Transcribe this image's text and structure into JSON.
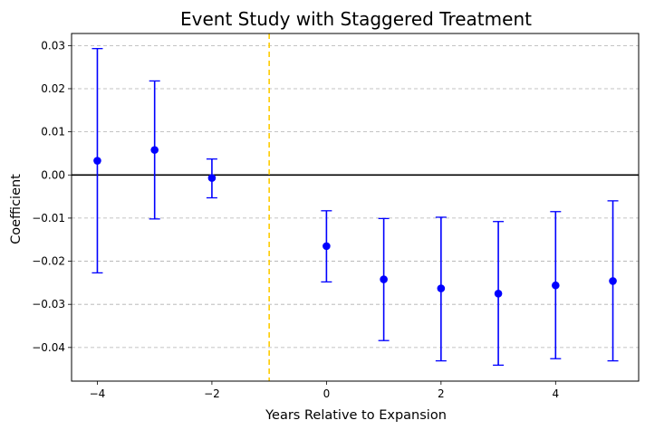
{
  "chart_data": {
    "type": "scatter",
    "title": "Event Study with Staggered Treatment",
    "xlabel": "Years Relative to Expansion",
    "ylabel": "Coefficient",
    "xlim": [
      -4.45,
      5.45
    ],
    "ylim": [
      -0.0478,
      0.0328
    ],
    "xticks": [
      -4,
      -2,
      0,
      2,
      4
    ],
    "xtick_labels": [
      "−4",
      "−2",
      "0",
      "2",
      "4"
    ],
    "yticks": [
      0.03,
      0.02,
      0.01,
      0.0,
      -0.01,
      -0.02,
      -0.03,
      -0.04
    ],
    "ytick_labels": [
      "0.03",
      "0.02",
      "0.01",
      "0.00",
      "−0.01",
      "−0.02",
      "−0.03",
      "−0.04"
    ],
    "grid": "y-dashed",
    "reference_lines": {
      "horizontal_y": 0,
      "horizontal_color": "#000000",
      "vertical_x": -1,
      "vertical_color": "#ffcc00"
    },
    "series": [
      {
        "color": "#0000ff",
        "points": [
          {
            "x": -4,
            "y": 0.0033,
            "ci_low": -0.0227,
            "ci_high": 0.0293
          },
          {
            "x": -3,
            "y": 0.0058,
            "ci_low": -0.0102,
            "ci_high": 0.0218
          },
          {
            "x": -2,
            "y": -0.0007,
            "ci_low": -0.0053,
            "ci_high": 0.0037
          },
          {
            "x": 0,
            "y": -0.0165,
            "ci_low": -0.0248,
            "ci_high": -0.0083
          },
          {
            "x": 1,
            "y": -0.0242,
            "ci_low": -0.0384,
            "ci_high": -0.0101
          },
          {
            "x": 2,
            "y": -0.0263,
            "ci_low": -0.0431,
            "ci_high": -0.0098
          },
          {
            "x": 3,
            "y": -0.0275,
            "ci_low": -0.0441,
            "ci_high": -0.0108
          },
          {
            "x": 4,
            "y": -0.0256,
            "ci_low": -0.0426,
            "ci_high": -0.0085
          },
          {
            "x": 5,
            "y": -0.0246,
            "ci_low": -0.0431,
            "ci_high": -0.006
          }
        ]
      }
    ]
  }
}
